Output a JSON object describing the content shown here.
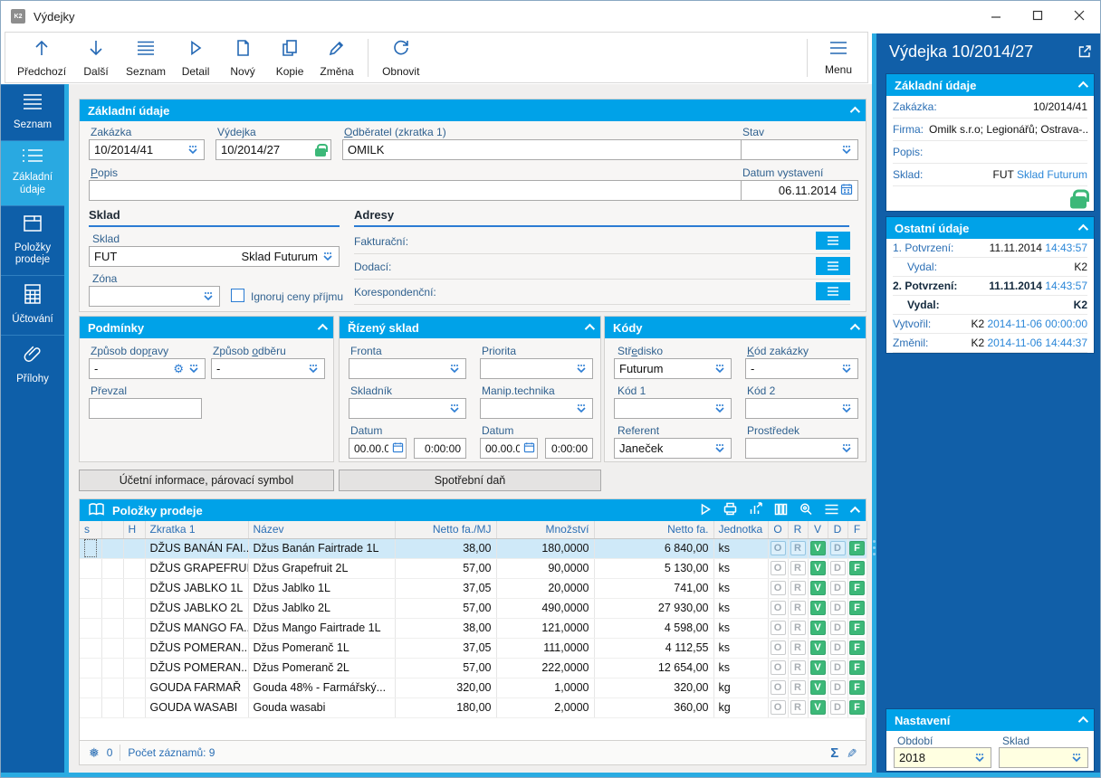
{
  "window": {
    "title": "Výdejky",
    "app_badge": "K2"
  },
  "toolbar": {
    "buttons": [
      {
        "label": "Předchozí",
        "icon": "arrow-up"
      },
      {
        "label": "Další",
        "icon": "arrow-down"
      },
      {
        "label": "Seznam",
        "icon": "list"
      },
      {
        "label": "Detail",
        "icon": "play-outline"
      },
      {
        "label": "Nový",
        "icon": "document"
      },
      {
        "label": "Kopie",
        "icon": "copy"
      },
      {
        "label": "Změna",
        "icon": "pencil"
      },
      {
        "label": "Obnovit",
        "icon": "refresh"
      }
    ],
    "menu_label": "Menu"
  },
  "sidebar": {
    "items": [
      {
        "label": "Seznam",
        "icon": "hamburger",
        "active": false
      },
      {
        "label": "Základní údaje",
        "icon": "detail-list",
        "active": true
      },
      {
        "label": "Položky prodeje",
        "icon": "box",
        "active": false
      },
      {
        "label": "Účtování",
        "icon": "calculator",
        "active": false
      },
      {
        "label": "Přílohy",
        "icon": "paperclip",
        "active": false
      }
    ]
  },
  "form": {
    "basic": {
      "title": "Základní údaje",
      "zakazka_label": "Zakázka",
      "zakazka_value": "10/2014/41",
      "vydejka_label": "Výdejka",
      "vydejka_value": "10/2014/27",
      "odberatel_label": "[O]dběratel (zkratka 1)",
      "odberatel_value": "OMILK",
      "stav_label": "Stav",
      "stav_value": "",
      "popis_label": "[P]opis",
      "popis_value": "",
      "popis_more": "…",
      "datum_label": "Datum vystavení",
      "datum_value": "06.11.2014",
      "sklad_title": "Sklad",
      "sklad_label": "Sklad",
      "sklad_code": "FUT",
      "sklad_name": "Sklad Futurum",
      "zona_label": "Zóna",
      "zona_value": "",
      "checkbox_label": "Ignoruj ceny příjmu",
      "adresy_title": "Adresy",
      "adresy_rows": [
        "Fakturační:",
        "Dodací:",
        "Korespondenční:"
      ]
    },
    "podminky": {
      "title": "Podmínky",
      "doprava_label": "Způsob dop[r]avy",
      "doprava_value": "-",
      "odber_label": "Způsob [o]dběru",
      "odber_value": "-",
      "prevzal_label": "Převzal",
      "prevzal_value": ""
    },
    "rizeny_sklad": {
      "title": "Řízený sklad",
      "fronta_label": "Fronta",
      "priorita_label": "Priorita",
      "skladnik_label": "Skladník",
      "manip_label": "Manip.technika",
      "datum1_label": "Datum",
      "datum1_value": "00.00.0",
      "cas1_value": "0:00:00",
      "datum2_label": "Datum",
      "datum2_value": "00.00.0",
      "cas2_value": "0:00:00"
    },
    "kody": {
      "title": "Kódy",
      "stredisko_label": "Stř[e]disko",
      "stredisko_value": "Futurum",
      "kod_zakazky_label": "[K]ód zakázky",
      "kod_zakazky_value": "-",
      "kod1_label": "Kód 1",
      "kod1_value": "",
      "kod2_label": "Kód 2",
      "kod2_value": "",
      "referent_label": "Referent",
      "referent_value": "Janeček",
      "prostredek_label": "Prostředek",
      "prostredek_value": ""
    },
    "buttons": {
      "ucetni": "Účetní informace, párovací symbol",
      "spotrebni": "Spotřební daň"
    }
  },
  "items_panel": {
    "title": "Položky prodeje",
    "columns": [
      "s",
      "",
      "H",
      "Zkratka 1",
      "Název",
      "Netto fa./MJ",
      "Množství",
      "Netto fa.",
      "Jednotka",
      "O",
      "R",
      "V",
      "D",
      "F"
    ],
    "badge_letters": [
      "O",
      "R",
      "V",
      "D",
      "F"
    ],
    "badge_filled": [
      "V",
      "F"
    ],
    "selected_row_index": 0,
    "rows": [
      {
        "zkratka": "DŽUS BANÁN FAI...",
        "nazev": "Džus Banán Fairtrade 1L",
        "netto_mj": "38,00",
        "mnozstvi": "180,0000",
        "netto": "6 840,00",
        "jednotka": "ks"
      },
      {
        "zkratka": "DŽUS GRAPEFRUI...",
        "nazev": "Džus Grapefruit 2L",
        "netto_mj": "57,00",
        "mnozstvi": "90,0000",
        "netto": "5 130,00",
        "jednotka": "ks"
      },
      {
        "zkratka": "DŽUS JABLKO 1L",
        "nazev": "Džus Jablko 1L",
        "netto_mj": "37,05",
        "mnozstvi": "20,0000",
        "netto": "741,00",
        "jednotka": "ks"
      },
      {
        "zkratka": "DŽUS JABLKO 2L",
        "nazev": "Džus Jablko 2L",
        "netto_mj": "57,00",
        "mnozstvi": "490,0000",
        "netto": "27 930,00",
        "jednotka": "ks"
      },
      {
        "zkratka": "DŽUS MANGO FA...",
        "nazev": "Džus Mango Fairtrade 1L",
        "netto_mj": "38,00",
        "mnozstvi": "121,0000",
        "netto": "4 598,00",
        "jednotka": "ks"
      },
      {
        "zkratka": "DŽUS POMERAN...",
        "nazev": "Džus Pomeranč 1L",
        "netto_mj": "37,05",
        "mnozstvi": "111,0000",
        "netto": "4 112,55",
        "jednotka": "ks"
      },
      {
        "zkratka": "DŽUS POMERAN...",
        "nazev": "Džus Pomeranč 2L",
        "netto_mj": "57,00",
        "mnozstvi": "222,0000",
        "netto": "12 654,00",
        "jednotka": "ks"
      },
      {
        "zkratka": "GOUDA FARMAŘ",
        "nazev": "Gouda 48% - Farmářský...",
        "netto_mj": "320,00",
        "mnozstvi": "1,0000",
        "netto": "320,00",
        "jednotka": "kg"
      },
      {
        "zkratka": "GOUDA WASABI",
        "nazev": "Gouda wasabi",
        "netto_mj": "180,00",
        "mnozstvi": "2,0000",
        "netto": "360,00",
        "jednotka": "kg"
      }
    ],
    "footer": {
      "frozen_count": "0",
      "records_text": "Počet záznamů: 9"
    }
  },
  "right_panel": {
    "title": "Výdejka 10/2014/27",
    "basic": {
      "title": "Základní údaje",
      "zakazka_label": "Zakázka:",
      "zakazka_value": "10/2014/41",
      "firma_label": "Firma:",
      "firma_value": "Omilk s.r.o; Legionářů; Ostrava-...",
      "popis_label": "Popis:",
      "popis_value": "",
      "sklad_label": "Sklad:",
      "sklad_code": "FUT",
      "sklad_name": "Sklad Futurum"
    },
    "ostatni": {
      "title": "Ostatní údaje",
      "rows": [
        {
          "label": "1. Potvrzení:",
          "value_black": "11.11.2014",
          "value_blue": "14:43:57",
          "bold": false,
          "indent": false
        },
        {
          "label": "Vydal:",
          "value_black": "K2",
          "value_blue": "",
          "bold": false,
          "indent": true
        },
        {
          "label": "2. Potvrzení:",
          "value_black": "11.11.2014",
          "value_blue": "14:43:57",
          "bold": true,
          "indent": false
        },
        {
          "label": "Vydal:",
          "value_black": "K2",
          "value_blue": "",
          "bold": true,
          "indent": true
        },
        {
          "label": "Vytvořil:",
          "value_black": "K2",
          "value_blue": "2014-11-06 00:00:00",
          "bold": false,
          "indent": false
        },
        {
          "label": "Změnil:",
          "value_black": "K2",
          "value_blue": "2014-11-06 14:44:37",
          "bold": false,
          "indent": false
        }
      ]
    },
    "nastaveni": {
      "title": "Nastavení",
      "obdobi_label": "Období",
      "obdobi_value": "2018",
      "sklad_label": "Sklad",
      "sklad_value": ""
    }
  },
  "colors": {
    "header_cyan": "#00a2e8",
    "accent_cyan": "#29abe2",
    "dark_blue": "#115fa8",
    "sidebar_blue": "#0e5fa9",
    "icon_blue": "#2468b4",
    "label_blue": "#30618f",
    "badge_green": "#3cb878",
    "selected_row": "#cfe9f8",
    "settings_field": "#ffffe1"
  }
}
